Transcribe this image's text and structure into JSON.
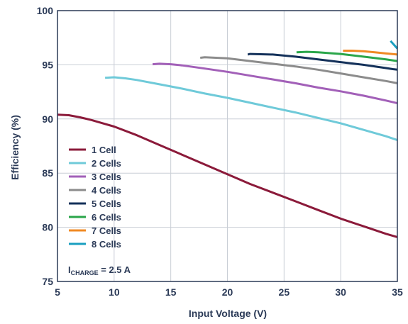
{
  "chart_data": {
    "type": "line",
    "title": "",
    "xlabel": "Input Voltage (V)",
    "ylabel": "Efficiency (%)",
    "xlim": [
      5,
      35
    ],
    "ylim": [
      75,
      100
    ],
    "x_ticks": [
      5,
      10,
      15,
      20,
      25,
      30,
      35
    ],
    "y_ticks": [
      75,
      80,
      85,
      90,
      95,
      100
    ],
    "x_tick_labels": [
      "5",
      "10",
      "15",
      "20",
      "25",
      "30",
      "35"
    ],
    "y_tick_labels": [
      "75",
      "80",
      "85",
      "90",
      "95",
      "100"
    ],
    "grid": true,
    "legend_position": "bottom-left",
    "annotation": {
      "main": "I",
      "sub": "CHARGE",
      "rest": " = 2.5 A"
    },
    "series": [
      {
        "name": "1 Cell",
        "color": "#8b1a3a",
        "points": [
          [
            5,
            90.4
          ],
          [
            6,
            90.35
          ],
          [
            7,
            90.15
          ],
          [
            8,
            89.9
          ],
          [
            9,
            89.6
          ],
          [
            10,
            89.3
          ],
          [
            12,
            88.5
          ],
          [
            14,
            87.6
          ],
          [
            16,
            86.7
          ],
          [
            18,
            85.8
          ],
          [
            20,
            84.9
          ],
          [
            22,
            84.0
          ],
          [
            24,
            83.2
          ],
          [
            26,
            82.4
          ],
          [
            28,
            81.6
          ],
          [
            30,
            80.8
          ],
          [
            32,
            80.1
          ],
          [
            34,
            79.4
          ],
          [
            35,
            79.1
          ]
        ]
      },
      {
        "name": "2 Cells",
        "color": "#6fcad9",
        "points": [
          [
            9.2,
            93.8
          ],
          [
            10,
            93.85
          ],
          [
            11,
            93.75
          ],
          [
            12,
            93.6
          ],
          [
            14,
            93.2
          ],
          [
            16,
            92.8
          ],
          [
            18,
            92.35
          ],
          [
            20,
            91.95
          ],
          [
            22,
            91.5
          ],
          [
            24,
            91.05
          ],
          [
            26,
            90.6
          ],
          [
            28,
            90.1
          ],
          [
            30,
            89.6
          ],
          [
            32,
            89.0
          ],
          [
            34,
            88.4
          ],
          [
            35,
            88.05
          ]
        ]
      },
      {
        "name": "3 Cells",
        "color": "#a260b8",
        "points": [
          [
            13.4,
            95.05
          ],
          [
            14,
            95.1
          ],
          [
            15,
            95.05
          ],
          [
            16,
            94.95
          ],
          [
            18,
            94.65
          ],
          [
            20,
            94.35
          ],
          [
            22,
            94.0
          ],
          [
            24,
            93.65
          ],
          [
            26,
            93.3
          ],
          [
            28,
            92.9
          ],
          [
            30,
            92.55
          ],
          [
            32,
            92.15
          ],
          [
            34,
            91.7
          ],
          [
            35,
            91.45
          ]
        ]
      },
      {
        "name": "4 Cells",
        "color": "#8c8c8c",
        "points": [
          [
            17.6,
            95.65
          ],
          [
            18,
            95.7
          ],
          [
            20,
            95.6
          ],
          [
            22,
            95.35
          ],
          [
            24,
            95.1
          ],
          [
            26,
            94.85
          ],
          [
            28,
            94.55
          ],
          [
            30,
            94.2
          ],
          [
            32,
            93.85
          ],
          [
            34,
            93.5
          ],
          [
            35,
            93.3
          ]
        ]
      },
      {
        "name": "5 Cells",
        "color": "#14315a",
        "points": [
          [
            21.8,
            95.95
          ],
          [
            22,
            96.0
          ],
          [
            24,
            95.95
          ],
          [
            26,
            95.75
          ],
          [
            28,
            95.5
          ],
          [
            30,
            95.25
          ],
          [
            32,
            95.0
          ],
          [
            34,
            94.7
          ],
          [
            34.6,
            94.6
          ],
          [
            35,
            94.55
          ]
        ]
      },
      {
        "name": "6 Cells",
        "color": "#2aa64a",
        "points": [
          [
            26.1,
            96.15
          ],
          [
            27,
            96.2
          ],
          [
            28,
            96.15
          ],
          [
            30,
            96.0
          ],
          [
            32,
            95.75
          ],
          [
            34,
            95.5
          ],
          [
            35,
            95.35
          ]
        ]
      },
      {
        "name": "7 Cells",
        "color": "#f08a24",
        "points": [
          [
            30.2,
            96.3
          ],
          [
            31,
            96.3
          ],
          [
            32,
            96.25
          ],
          [
            33,
            96.15
          ],
          [
            34,
            96.05
          ],
          [
            35,
            95.95
          ]
        ]
      },
      {
        "name": "8 Cells",
        "color": "#1a9fc0",
        "points": [
          [
            34.4,
            97.2
          ],
          [
            34.7,
            96.85
          ],
          [
            35,
            96.5
          ]
        ]
      }
    ]
  }
}
